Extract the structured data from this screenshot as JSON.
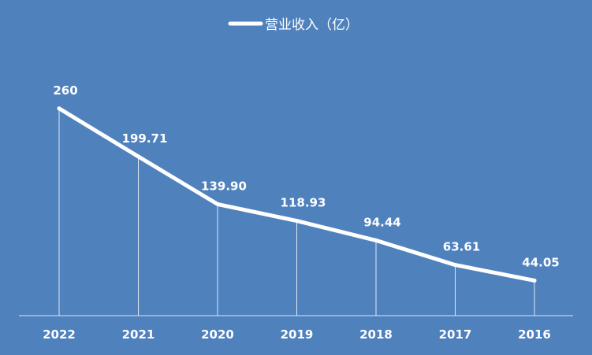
{
  "colors": {
    "background": "#4f81bd",
    "line": "#ffffff",
    "axis": "#dfe8f3"
  },
  "chart_data": {
    "type": "line",
    "categories": [
      "2022",
      "2021",
      "2020",
      "2019",
      "2018",
      "2017",
      "2016"
    ],
    "series": [
      {
        "name": "营业收入（亿）",
        "values": [
          260,
          199.71,
          139.9,
          118.93,
          94.44,
          63.61,
          44.05
        ]
      }
    ],
    "data_labels": [
      "260",
      "199.71",
      "139.90",
      "118.93",
      "94.44",
      "63.61",
      "44.05"
    ],
    "ylim": [
      0,
      330
    ],
    "drop_lines": true,
    "grid": false,
    "legend_position": "top-center"
  }
}
